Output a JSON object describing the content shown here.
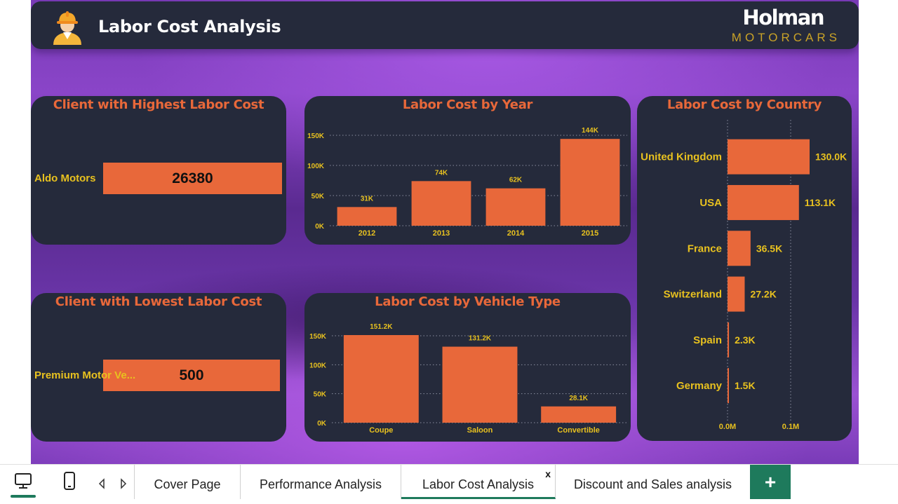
{
  "header": {
    "title": "Labor Cost Analysis",
    "logo_brand": "Holman",
    "logo_sub": "MOTORCARS"
  },
  "highest_card": {
    "title": "Client with Highest Labor Cost",
    "client": "Aldo Motors",
    "value": "26380"
  },
  "lowest_card": {
    "title": "Client with Lowest Labor Cost",
    "client": "Premium Motor Ve...",
    "value": "500"
  },
  "colors": {
    "bar": "#e8683a",
    "label": "#e8c11f",
    "card": "#252a3b",
    "title": "#e8683a"
  },
  "chart_data": [
    {
      "id": "year",
      "type": "bar",
      "title": "Labor Cost by Year",
      "categories": [
        "2012",
        "2013",
        "2014",
        "2015"
      ],
      "values": [
        31000,
        74000,
        62000,
        144000
      ],
      "data_labels": [
        "31K",
        "74K",
        "62K",
        "144K"
      ],
      "y_ticks": [
        "0K",
        "50K",
        "100K",
        "150K"
      ],
      "ylim": [
        0,
        150000
      ],
      "grid": true
    },
    {
      "id": "vehicle",
      "type": "bar",
      "title": "Labor Cost by Vehicle Type",
      "categories": [
        "Coupe",
        "Saloon",
        "Convertible"
      ],
      "values": [
        151200,
        131200,
        28100
      ],
      "data_labels": [
        "151.2K",
        "131.2K",
        "28.1K"
      ],
      "y_ticks": [
        "0K",
        "50K",
        "100K",
        "150K"
      ],
      "ylim": [
        0,
        150000
      ],
      "grid": true
    },
    {
      "id": "country",
      "type": "bar",
      "orientation": "horizontal",
      "title": "Labor Cost by Country",
      "categories": [
        "United Kingdom",
        "USA",
        "France",
        "Switzerland",
        "Spain",
        "Germany"
      ],
      "values": [
        130000,
        113100,
        36500,
        27200,
        2300,
        1500
      ],
      "data_labels": [
        "130.0K",
        "113.1K",
        "36.5K",
        "27.2K",
        "2.3K",
        "1.5K"
      ],
      "x_ticks": [
        "0.0M",
        "0.1M"
      ],
      "xlim": [
        0,
        100000
      ],
      "grid": true
    }
  ],
  "tabs": [
    {
      "label": "Cover Page"
    },
    {
      "label": "Performance Analysis"
    },
    {
      "label": "Labor Cost Analysis",
      "close": "x"
    },
    {
      "label": "Discount and Sales analysis"
    }
  ],
  "add_tab_label": "+"
}
